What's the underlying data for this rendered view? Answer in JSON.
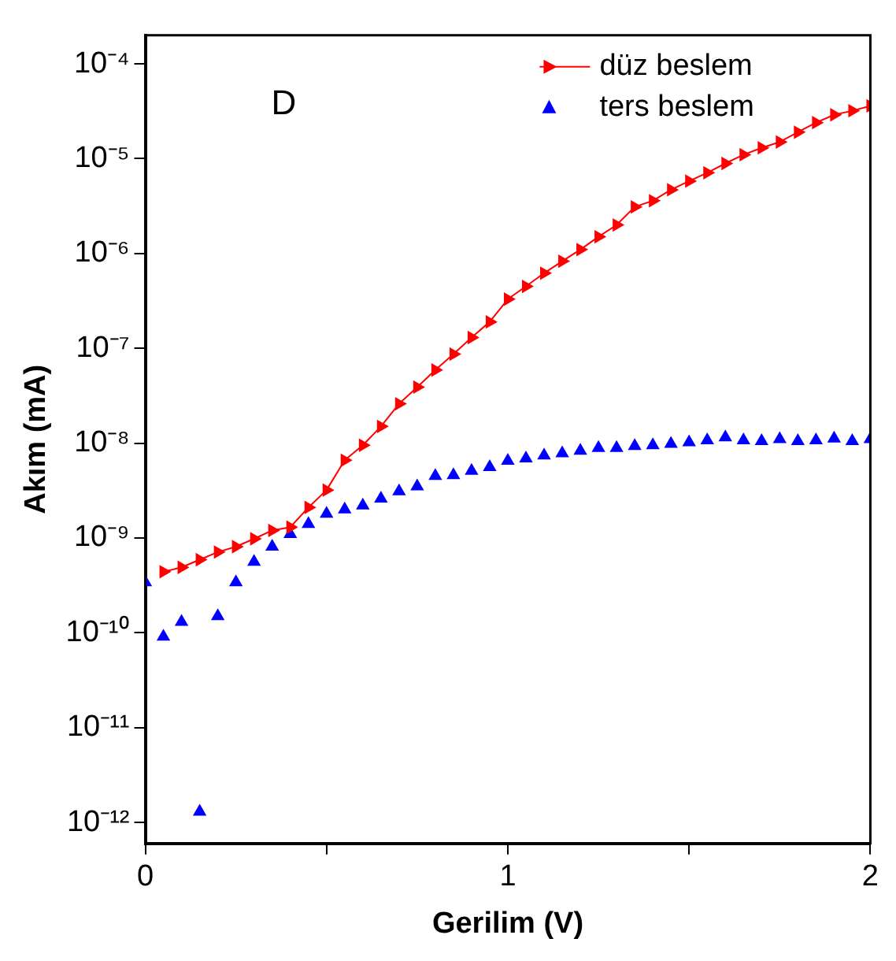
{
  "chart_data": {
    "type": "line",
    "xlabel": "Gerilim (V)",
    "ylabel": "Akım (mA)",
    "annotations": [
      "D"
    ],
    "xlim": [
      0,
      2
    ],
    "xticks": [
      0,
      {
        "value": 0.5,
        "label": null
      },
      1,
      {
        "value": 1.5,
        "label": null
      },
      2
    ],
    "ylim": [
      6.2e-13,
      0.0002
    ],
    "log": "y",
    "yticks": [
      {
        "value": 1e-12,
        "label": "10⁻¹²"
      },
      {
        "value": 1e-11,
        "label": "10⁻¹¹"
      },
      {
        "value": 1e-10,
        "label": "10⁻¹⁰"
      },
      {
        "value": 1e-09,
        "label": "10⁻⁹"
      },
      {
        "value": 1e-08,
        "label": "10⁻⁸"
      },
      {
        "value": 1e-07,
        "label": "10⁻⁷"
      },
      {
        "value": 1e-06,
        "label": "10⁻⁶"
      },
      {
        "value": 1e-05,
        "label": "10⁻⁵"
      },
      {
        "value": 0.0001,
        "label": "10⁻⁴"
      }
    ],
    "grid": false,
    "legend": "top right",
    "marker": "triangle",
    "series": [
      {
        "name": "düz beslem",
        "color": "#ff0000",
        "line_style": "solid",
        "x": [
          0.05,
          0.1,
          0.15,
          0.2,
          0.25,
          0.3,
          0.35,
          0.4,
          0.45,
          0.5,
          0.55,
          0.6,
          0.65,
          0.7,
          0.75,
          0.8,
          0.85,
          0.9,
          0.95,
          1.0,
          1.05,
          1.1,
          1.15,
          1.2,
          1.25,
          1.3,
          1.35,
          1.4,
          1.45,
          1.5,
          1.55,
          1.6,
          1.65,
          1.7,
          1.75,
          1.8,
          1.85,
          1.9,
          1.95,
          2.0
        ],
        "values": [
          4.4e-10,
          4.9e-10,
          5.9e-10,
          7.1e-10,
          8.1e-10,
          9.8e-10,
          1.2e-09,
          1.3e-09,
          2.1e-09,
          3.2e-09,
          6.6e-09,
          9.5e-09,
          1.5e-08,
          2.6e-08,
          3.9e-08,
          5.9e-08,
          8.7e-08,
          1.3e-07,
          1.9e-07,
          3.3e-07,
          4.5e-07,
          6.2e-07,
          8.3e-07,
          1.1e-06,
          1.5e-06,
          2e-06,
          3.1e-06,
          3.6e-06,
          4.7e-06,
          5.8e-06,
          7.1e-06,
          8.9e-06,
          1.1e-05,
          1.3e-05,
          1.5e-05,
          1.9e-05,
          2.4e-05,
          2.9e-05,
          3.2e-05,
          3.6e-05
        ]
      },
      {
        "name": "ters beslem",
        "type": "scatter",
        "color": "#0000ff",
        "x": [
          0,
          0.05,
          0.1,
          0.15,
          0.2,
          0.25,
          0.3,
          0.35,
          0.4,
          0.45,
          0.5,
          0.55,
          0.6,
          0.65,
          0.7,
          0.75,
          0.8,
          0.85,
          0.9,
          0.95,
          1.0,
          1.05,
          1.1,
          1.15,
          1.2,
          1.25,
          1.3,
          1.35,
          1.4,
          1.45,
          1.5,
          1.55,
          1.6,
          1.65,
          1.7,
          1.75,
          1.8,
          1.85,
          1.9,
          1.95,
          2.0
        ],
        "values": [
          3.4e-10,
          9.1e-11,
          1.3e-10,
          1.3e-12,
          1.5e-10,
          3.4e-10,
          5.6e-10,
          8.1e-10,
          1.1e-09,
          1.4e-09,
          1.8e-09,
          2e-09,
          2.2e-09,
          2.6e-09,
          3.1e-09,
          3.5e-09,
          4.5e-09,
          4.6e-09,
          5.1e-09,
          5.6e-09,
          6.5e-09,
          6.9e-09,
          7.4e-09,
          7.8e-09,
          8.3e-09,
          8.9e-09,
          8.9e-09,
          9.3e-09,
          9.5e-09,
          9.8e-09,
          1.02e-08,
          1.07e-08,
          1.15e-08,
          1.07e-08,
          1.05e-08,
          1.1e-08,
          1.05e-08,
          1.07e-08,
          1.12e-08,
          1.05e-08,
          1.1e-08
        ]
      }
    ]
  }
}
